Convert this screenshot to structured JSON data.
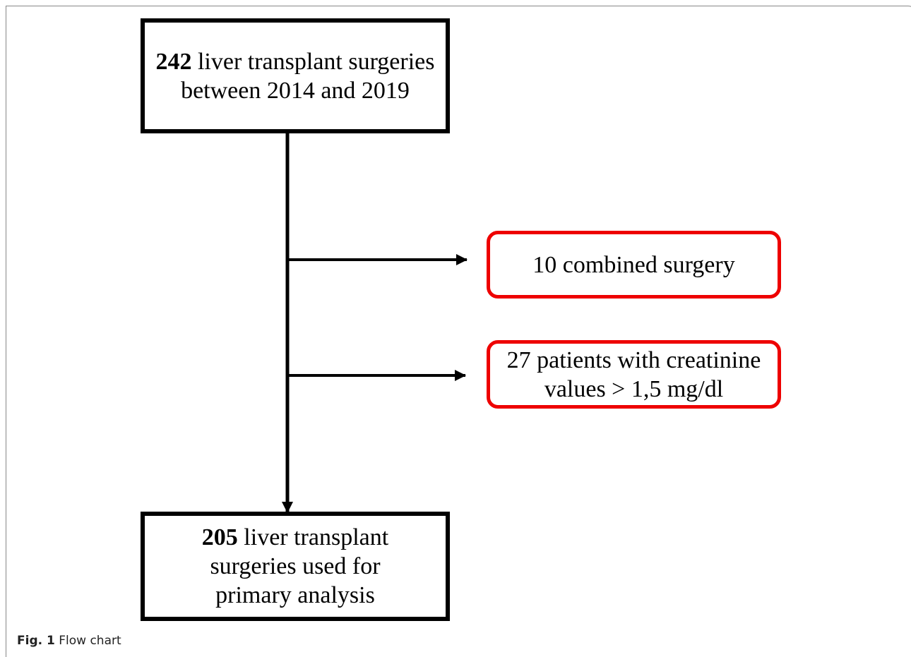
{
  "nodes": [
    {
      "count": "242",
      "label": "liver transplant surgeries between 2014 and 2019"
    },
    {
      "label": "10 combined surgery"
    },
    {
      "label": "27 patients with creatinine values > 1,5 mg/dl"
    },
    {
      "count": "205",
      "label": "liver transplant surgeries used for primary analysis"
    }
  ],
  "caption": {
    "label": "Fig. 1",
    "text": "Flow chart"
  }
}
